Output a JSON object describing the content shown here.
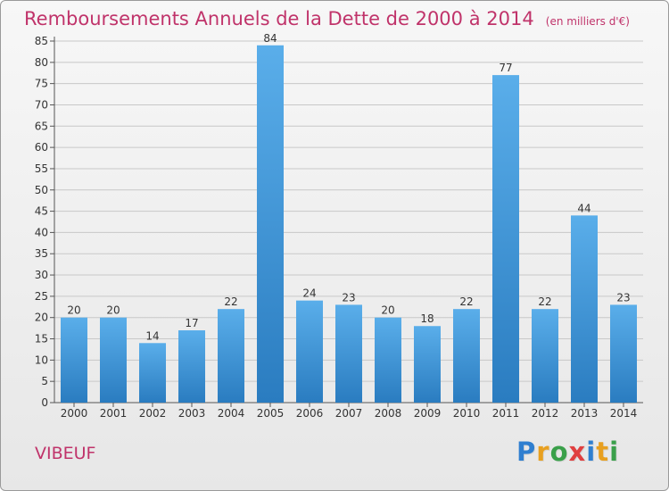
{
  "title": "Remboursements Annuels de la Dette de 2000 à 2014",
  "unit_label": "(en milliers d'€)",
  "commune_name": "VIBEUF",
  "logo": {
    "letters": [
      "P",
      "r",
      "o",
      "x",
      "i",
      "t",
      "i"
    ],
    "colors": [
      "#2f7fd0",
      "#e8a020",
      "#3aa04a",
      "#e04040",
      "#2f7fd0",
      "#e8a020",
      "#3aa04a"
    ]
  },
  "colors": {
    "title": "#c0336a",
    "bar_light": "#5aaeea",
    "bar_dark": "#2a7cc0",
    "grid": "#c8c8c8"
  },
  "chart_data": {
    "type": "bar",
    "categories": [
      "2000",
      "2001",
      "2002",
      "2003",
      "2004",
      "2005",
      "2006",
      "2007",
      "2008",
      "2009",
      "2010",
      "2011",
      "2012",
      "2013",
      "2014"
    ],
    "values": [
      20,
      20,
      14,
      17,
      22,
      84,
      24,
      23,
      20,
      18,
      22,
      77,
      22,
      44,
      23
    ],
    "yticks": [
      0,
      5,
      10,
      15,
      20,
      25,
      30,
      35,
      40,
      45,
      50,
      55,
      60,
      65,
      70,
      75,
      80,
      85
    ],
    "ylim": [
      0,
      85
    ],
    "grid": true,
    "legend": "none"
  }
}
